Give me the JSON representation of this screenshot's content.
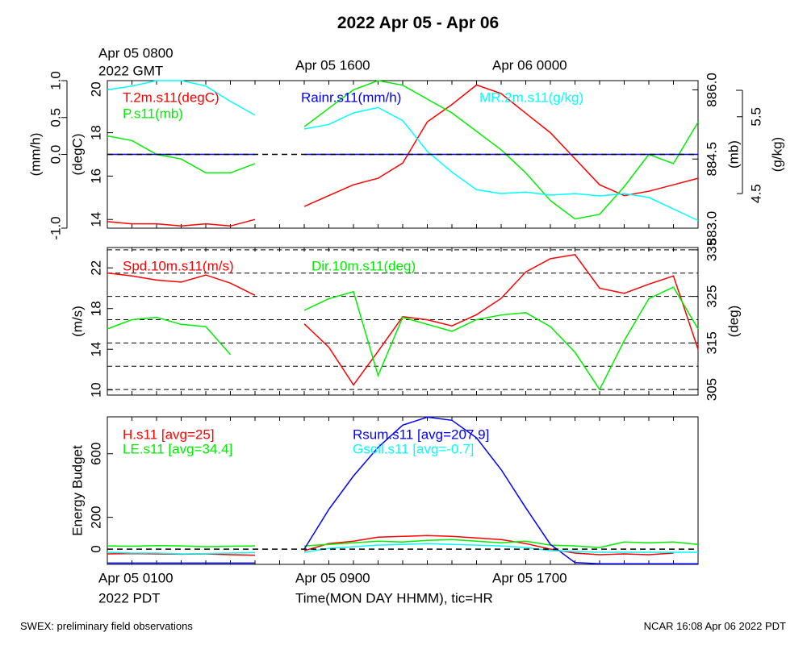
{
  "title": "2022 Apr 05 - Apr 06",
  "footer_left": "SWEX: preliminary field observations",
  "footer_right": "NCAR 16:08 Apr 06 2022 PDT",
  "chart_data": [
    {
      "type": "line",
      "x": [
        "Apr 05 0100",
        "Apr 05 0200",
        "Apr 05 0300",
        "Apr 05 0400",
        "Apr 05 0500",
        "Apr 05 0600",
        "Apr 05 0700",
        "Apr 05 0800",
        "Apr 05 0900",
        "Apr 05 1000",
        "Apr 05 1100",
        "Apr 05 1200",
        "Apr 05 1300",
        "Apr 05 1400",
        "Apr 05 1500",
        "Apr 05 1600",
        "Apr 05 1700",
        "Apr 05 1800",
        "Apr 05 1900",
        "Apr 05 2000",
        "Apr 05 2100",
        "Apr 05 2200",
        "Apr 05 2300",
        "Apr 06 0000",
        "Apr 06 0100"
      ],
      "top_xticks": [
        {
          "value": "Apr 05 0100",
          "label": "Apr 05 0800"
        },
        {
          "value": "Apr 05 0900",
          "label": "Apr 05 1600"
        },
        {
          "value": "Apr 05 1700",
          "label": "Apr 06 0000"
        }
      ],
      "top_xlabel": "2022 GMT",
      "ylabel": "(mm/h)",
      "ylim": [
        -1,
        1
      ],
      "yticks": [
        {
          "value": -1,
          "label": "-1.0"
        },
        {
          "value": 0,
          "label": "0.0"
        },
        0.5,
        {
          "value": 1,
          "label": "1.0"
        }
      ],
      "y2label": "(degC)",
      "y2lim": [
        13.6,
        20.4
      ],
      "y2ticks": [
        14,
        16,
        18,
        20
      ],
      "y3label": "(mb)",
      "y3lim": [
        883.0,
        886.2
      ],
      "y3ticks": [
        {
          "value": 883,
          "label": "883.0"
        },
        884.5,
        {
          "value": 886,
          "label": "886.0"
        }
      ],
      "y4label": "(g/kg)",
      "y4lim": [
        4.05,
        5.97
      ],
      "y4ticks": [
        4.5,
        5.5
      ],
      "zero_line": true,
      "series": [
        {
          "name": "T.2m.s11(degC)",
          "color": "#ff0000",
          "axis": "y2",
          "values": [
            13.9,
            13.8,
            13.8,
            13.7,
            13.8,
            13.7,
            14.0,
            null,
            14.6,
            15.1,
            15.6,
            15.9,
            16.6,
            18.5,
            19.3,
            20.2,
            19.8,
            18.9,
            18.0,
            16.8,
            15.6,
            15.1,
            15.3,
            15.6,
            15.9
          ]
        },
        {
          "name": "P.s11(mb)",
          "color": "#00ee00",
          "axis": "y3",
          "values": [
            885.0,
            884.9,
            884.6,
            884.5,
            884.2,
            884.2,
            884.4,
            null,
            885.2,
            885.6,
            886.0,
            886.2,
            886.1,
            885.8,
            885.5,
            885.1,
            884.7,
            884.2,
            883.6,
            883.2,
            883.3,
            883.9,
            884.6,
            884.4,
            885.3
          ]
        },
        {
          "name": "Rainr.s11(mm/h)",
          "color": "#0000ff",
          "axis": "y",
          "values": [
            0,
            0,
            0,
            0,
            0,
            0,
            0,
            null,
            0,
            0,
            0,
            0,
            0,
            0,
            0,
            0,
            0,
            0,
            0,
            0,
            0,
            0,
            0,
            0,
            0
          ]
        },
        {
          "name": "MR.2m.s11(g/kg)",
          "color": "#00ffff",
          "axis": "y4",
          "values": [
            5.85,
            5.9,
            5.97,
            5.97,
            5.9,
            5.7,
            5.52,
            null,
            5.34,
            5.4,
            5.55,
            5.62,
            5.45,
            5.05,
            4.78,
            4.55,
            4.5,
            4.52,
            4.48,
            4.5,
            4.47,
            4.5,
            4.45,
            4.3,
            4.15
          ]
        }
      ]
    },
    {
      "type": "line",
      "x": [
        "Apr 05 0100",
        "Apr 05 0200",
        "Apr 05 0300",
        "Apr 05 0400",
        "Apr 05 0500",
        "Apr 05 0600",
        "Apr 05 0700",
        "Apr 05 0800",
        "Apr 05 0900",
        "Apr 05 1000",
        "Apr 05 1100",
        "Apr 05 1200",
        "Apr 05 1300",
        "Apr 05 1400",
        "Apr 05 1500",
        "Apr 05 1600",
        "Apr 05 1700",
        "Apr 05 1800",
        "Apr 05 1900",
        "Apr 05 2000",
        "Apr 05 2100",
        "Apr 05 2200",
        "Apr 05 2300",
        "Apr 06 0000",
        "Apr 06 0100"
      ],
      "ylabel": "(m/s)",
      "ylim": [
        9.5,
        24
      ],
      "yticks": [
        10,
        14,
        18,
        22
      ],
      "y2label": "(deg)",
      "y2lim": [
        303.8,
        335.5
      ],
      "y2ticks": [
        305,
        315,
        325,
        335
      ],
      "y2grid": [
        305,
        310,
        315,
        320,
        325,
        330,
        335
      ],
      "series": [
        {
          "name": "Spd.10m.s11(m/s)",
          "color": "#ff0000",
          "axis": "y",
          "values": [
            21.5,
            21.2,
            20.8,
            20.6,
            21.3,
            20.5,
            19.3,
            null,
            16.5,
            14.2,
            10.5,
            13.8,
            17.2,
            16.9,
            16.3,
            17.4,
            19.0,
            21.6,
            22.9,
            23.3,
            20.0,
            19.5,
            20.4,
            21.2,
            14.0
          ]
        },
        {
          "name": "Dir.10m.s11(deg)",
          "color": "#00ee00",
          "axis": "y2",
          "values": [
            318,
            320,
            320.5,
            319,
            318.5,
            312.5,
            null,
            null,
            322,
            324.5,
            326,
            308,
            320.5,
            319,
            317.5,
            320,
            321,
            321.5,
            318.5,
            313,
            305,
            315.5,
            324.5,
            327,
            318
          ]
        }
      ]
    },
    {
      "type": "line",
      "x": [
        "Apr 05 0100",
        "Apr 05 0200",
        "Apr 05 0300",
        "Apr 05 0400",
        "Apr 05 0500",
        "Apr 05 0600",
        "Apr 05 0700",
        "Apr 05 0800",
        "Apr 05 0900",
        "Apr 05 1000",
        "Apr 05 1100",
        "Apr 05 1200",
        "Apr 05 1300",
        "Apr 05 1400",
        "Apr 05 1500",
        "Apr 05 1600",
        "Apr 05 1700",
        "Apr 05 1800",
        "Apr 05 1900",
        "Apr 05 2000",
        "Apr 05 2100",
        "Apr 05 2200",
        "Apr 05 2300",
        "Apr 06 0000",
        "Apr 06 0100"
      ],
      "xticks": [
        "Apr 05 0100",
        "Apr 05 0900",
        "Apr 05 1700"
      ],
      "xlabel": "Time(MON DAY HHMM), tic=HR",
      "bottom_xlabel": "2022 PDT",
      "ylabel": "Energy Budget",
      "ylim": [
        -96,
        832
      ],
      "yticks": [
        0,
        200,
        600
      ],
      "zero_line": true,
      "series": [
        {
          "name": "H.s11 [avg=25]",
          "color": "#ff0000",
          "axis": "y",
          "values": [
            -30,
            -28,
            -30,
            -32,
            -30,
            -35,
            -38,
            null,
            -10,
            35,
            50,
            75,
            80,
            85,
            80,
            70,
            60,
            35,
            0,
            -25,
            -35,
            -30,
            -35,
            -25,
            null
          ]
        },
        {
          "name": "LE.s11 [avg=34.4]",
          "color": "#00ee00",
          "axis": "y",
          "values": [
            20,
            18,
            22,
            20,
            15,
            18,
            20,
            null,
            20,
            30,
            40,
            50,
            45,
            55,
            60,
            50,
            40,
            50,
            25,
            20,
            10,
            45,
            40,
            45,
            30
          ]
        },
        {
          "name": "Rsum.s11 [avg=207.9]",
          "color": "#0000ff",
          "axis": "y",
          "values": [
            -88,
            -88,
            -88,
            -88,
            -88,
            -88,
            -88,
            null,
            0,
            250,
            460,
            640,
            780,
            830,
            810,
            700,
            500,
            260,
            30,
            -85,
            -92,
            -92,
            -92,
            -92,
            -92
          ]
        },
        {
          "name": "Gsoil.s11 [avg=-0.7]",
          "color": "#00ffff",
          "axis": "y",
          "values": [
            -20,
            -25,
            -25,
            -30,
            -28,
            -25,
            -22,
            null,
            -20,
            5,
            15,
            25,
            30,
            35,
            30,
            25,
            20,
            10,
            -10,
            -15,
            -20,
            -20,
            -20,
            -20,
            -20
          ]
        }
      ]
    }
  ]
}
